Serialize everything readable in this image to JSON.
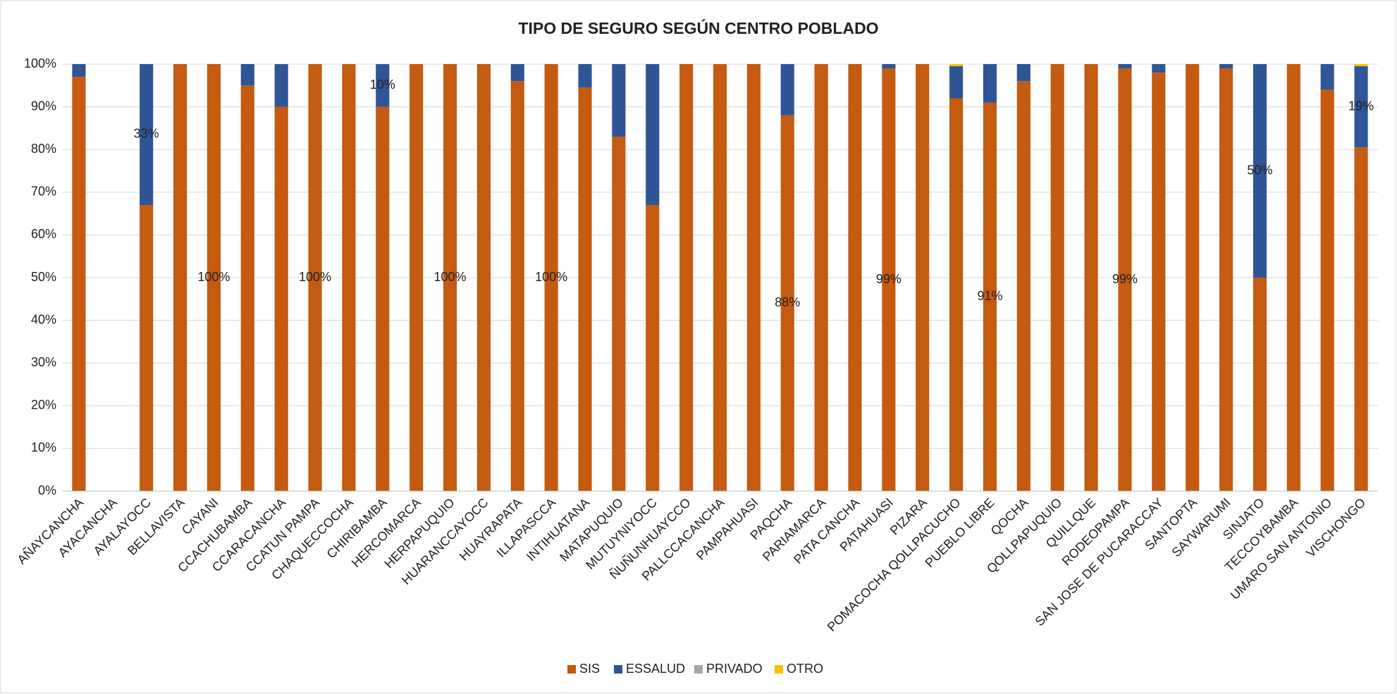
{
  "chart_data": {
    "type": "stacked_bar",
    "title": "TIPO DE SEGURO SEGÚN CENTRO POBLADO",
    "categories": [
      "AÑAYCANCHA",
      "AYACANCHA",
      "AYALAYOCC",
      "BELLAVISTA",
      "CAYANI",
      "CCACHUBAMBA",
      "CCARACANCHA",
      "CCATUN PAMPA",
      "CHAQUECCOCHA",
      "CHIRIBAMBA",
      "HERCOMARCA",
      "HERPAPUQUIO",
      "HUARANCCAYOCC",
      "HUAYRAPATA",
      "ILLAPASCCA",
      "INTIHUATANA",
      "MATAPUQUIO",
      "MUTUYNIYOCC",
      "ÑUÑUNHUAYCCO",
      "PALLCCACANCHA",
      "PAMPAHUASI",
      "PAQCHA",
      "PARIAMARCA",
      "PATA CANCHA",
      "PATAHUASI",
      "PIZARA",
      "POMACOCHA QOLLPACUCHO",
      "PUEBLO LIBRE",
      "QOCHA",
      "QOLLPAPUQUIO",
      "QUILLQUE",
      "RODEOPAMPA",
      "SAN JOSE DE PUCARACCAY",
      "SANTOPTA",
      "SAYWARUMI",
      "SINJATO",
      "TECCOYBAMBA",
      "UMARO SAN ANTONIO",
      "VISCHONGO"
    ],
    "series": [
      {
        "name": "SIS",
        "color": "#c55a11",
        "values": [
          97,
          null,
          67,
          100,
          100,
          95,
          90,
          100,
          100,
          90,
          100,
          100,
          100,
          96,
          100,
          94.5,
          83,
          67,
          100,
          100,
          100,
          88,
          100,
          100,
          99,
          100,
          92,
          91,
          96,
          100,
          100,
          99,
          98,
          100,
          99,
          50,
          100,
          94,
          80.5
        ],
        "value_labels": [
          null,
          null,
          null,
          null,
          "100%",
          null,
          null,
          "100%",
          null,
          null,
          null,
          "100%",
          null,
          null,
          "100%",
          null,
          null,
          null,
          null,
          null,
          null,
          "88%",
          null,
          null,
          "99%",
          null,
          null,
          "91%",
          null,
          null,
          null,
          "99%",
          null,
          null,
          null,
          null,
          null,
          null,
          null
        ]
      },
      {
        "name": "ESSALUD",
        "color": "#2f5597",
        "values": [
          3,
          null,
          33,
          0,
          0,
          5,
          10,
          0,
          0,
          10,
          0,
          0,
          0,
          4,
          0,
          5.5,
          17,
          33,
          0,
          0,
          0,
          12,
          0,
          0,
          1,
          0,
          7.5,
          9,
          4,
          0,
          0,
          1,
          2,
          0,
          1,
          50,
          0,
          6,
          19
        ],
        "value_labels": [
          null,
          null,
          "33%",
          null,
          null,
          null,
          null,
          null,
          null,
          "10%",
          null,
          null,
          null,
          null,
          null,
          null,
          null,
          null,
          null,
          null,
          null,
          null,
          null,
          null,
          null,
          null,
          null,
          null,
          null,
          null,
          null,
          null,
          null,
          null,
          null,
          "50%",
          null,
          null,
          "19%"
        ]
      },
      {
        "name": "PRIVADO",
        "color": "#a5a5a5",
        "values": [
          0,
          null,
          0,
          0,
          0,
          0,
          0,
          0,
          0,
          0,
          0,
          0,
          0,
          0,
          0,
          0,
          0,
          0,
          0,
          0,
          0,
          0,
          0,
          0,
          0,
          0,
          0,
          0,
          0,
          0,
          0,
          0,
          0,
          0,
          0,
          0,
          0,
          0,
          0
        ]
      },
      {
        "name": "OTRO",
        "color": "#ffc000",
        "values": [
          0,
          null,
          0,
          0,
          0,
          0,
          0,
          0,
          0,
          0,
          0,
          0,
          0,
          0,
          0,
          0,
          0,
          0,
          0,
          0,
          0,
          0,
          0,
          0,
          0,
          0,
          0.5,
          0,
          0,
          0,
          0,
          0,
          0,
          0,
          0,
          0,
          0,
          0,
          0.5
        ]
      }
    ],
    "ylim": [
      0,
      100
    ],
    "yticks": [
      {
        "value": 0,
        "label": "0%"
      },
      {
        "value": 10,
        "label": "10%"
      },
      {
        "value": 20,
        "label": "20%"
      },
      {
        "value": 30,
        "label": "30%"
      },
      {
        "value": 40,
        "label": "40%"
      },
      {
        "value": 50,
        "label": "50%"
      },
      {
        "value": 60,
        "label": "60%"
      },
      {
        "value": 70,
        "label": "70%"
      },
      {
        "value": 80,
        "label": "80%"
      },
      {
        "value": 90,
        "label": "90%"
      },
      {
        "value": 100,
        "label": "100%"
      }
    ],
    "grid": true,
    "legend": "bottom"
  }
}
